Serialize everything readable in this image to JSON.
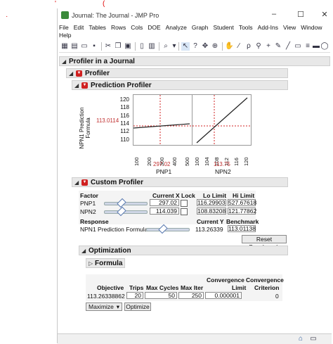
{
  "window": {
    "title": "Journal: The Journal - JMP Pro"
  },
  "menu": [
    "File",
    "Edit",
    "Tables",
    "Rows",
    "Cols",
    "DOE",
    "Analyze",
    "Graph",
    "Student",
    "Tools",
    "Add-Ins",
    "View",
    "Window",
    "Help"
  ],
  "report": {
    "root_title": "Profiler in a Journal",
    "profiler_title": "Profiler",
    "prediction_profiler_title": "Prediction Profiler",
    "y_label_line1": "NPN1 Prediction",
    "y_label_line2": "Formula",
    "y_current": "113.0114",
    "y_ticks": [
      "120",
      "118",
      "116",
      "114",
      "112",
      "110"
    ],
    "pnp1": {
      "name": "PNP1",
      "current": "297.02",
      "ticks": [
        "100",
        "150",
        "200",
        "250",
        "300",
        "350",
        "400",
        "450",
        "500"
      ]
    },
    "npn2": {
      "name": "NPN2",
      "current": "113.75",
      "ticks": [
        "100",
        "102",
        "104",
        "106",
        "108",
        "110",
        "112",
        "114",
        "116",
        "118",
        "120",
        "122"
      ]
    }
  },
  "custom_profiler": {
    "title": "Custom Profiler",
    "headers": {
      "factor": "Factor",
      "current_x": "Current X",
      "lock": "Lock",
      "lo": "Lo Limit",
      "hi": "Hi Limit"
    },
    "factors": [
      {
        "name": "PNP1",
        "current": "297.02",
        "lo": "116.29903",
        "hi": "527.67618"
      },
      {
        "name": "NPN2",
        "current": "114.039",
        "lo": "108.83208",
        "hi": "121.77862"
      }
    ],
    "resp_headers": {
      "response": "Response",
      "current_y": "Current Y",
      "benchmark": "Benchmark"
    },
    "response": {
      "name": "NPN1 Prediction Formula",
      "current": "113.26339",
      "benchmark": "113.01138"
    },
    "reset_label": "Reset Benchmark"
  },
  "optimization": {
    "title": "Optimization",
    "formula_label": "Formula",
    "headers": {
      "objective": "Objective",
      "trips": "Trips",
      "max_cycles": "Max Cycles",
      "max_iter": "Max Iter",
      "conv_limit": "Convergence Limit",
      "conv_criterion": "Convergence Criterion"
    },
    "row": {
      "objective": "113.26338862",
      "trips": "20",
      "max_cycles": "50",
      "max_iter": "250",
      "conv_limit": "0.000001",
      "conv_criterion": "0"
    },
    "maximize_label": "Maximize",
    "optimize_label": "Optimize"
  },
  "colors": {
    "accent_red": "#d02020",
    "curve": "#222222",
    "crosshair": "#d02020"
  }
}
